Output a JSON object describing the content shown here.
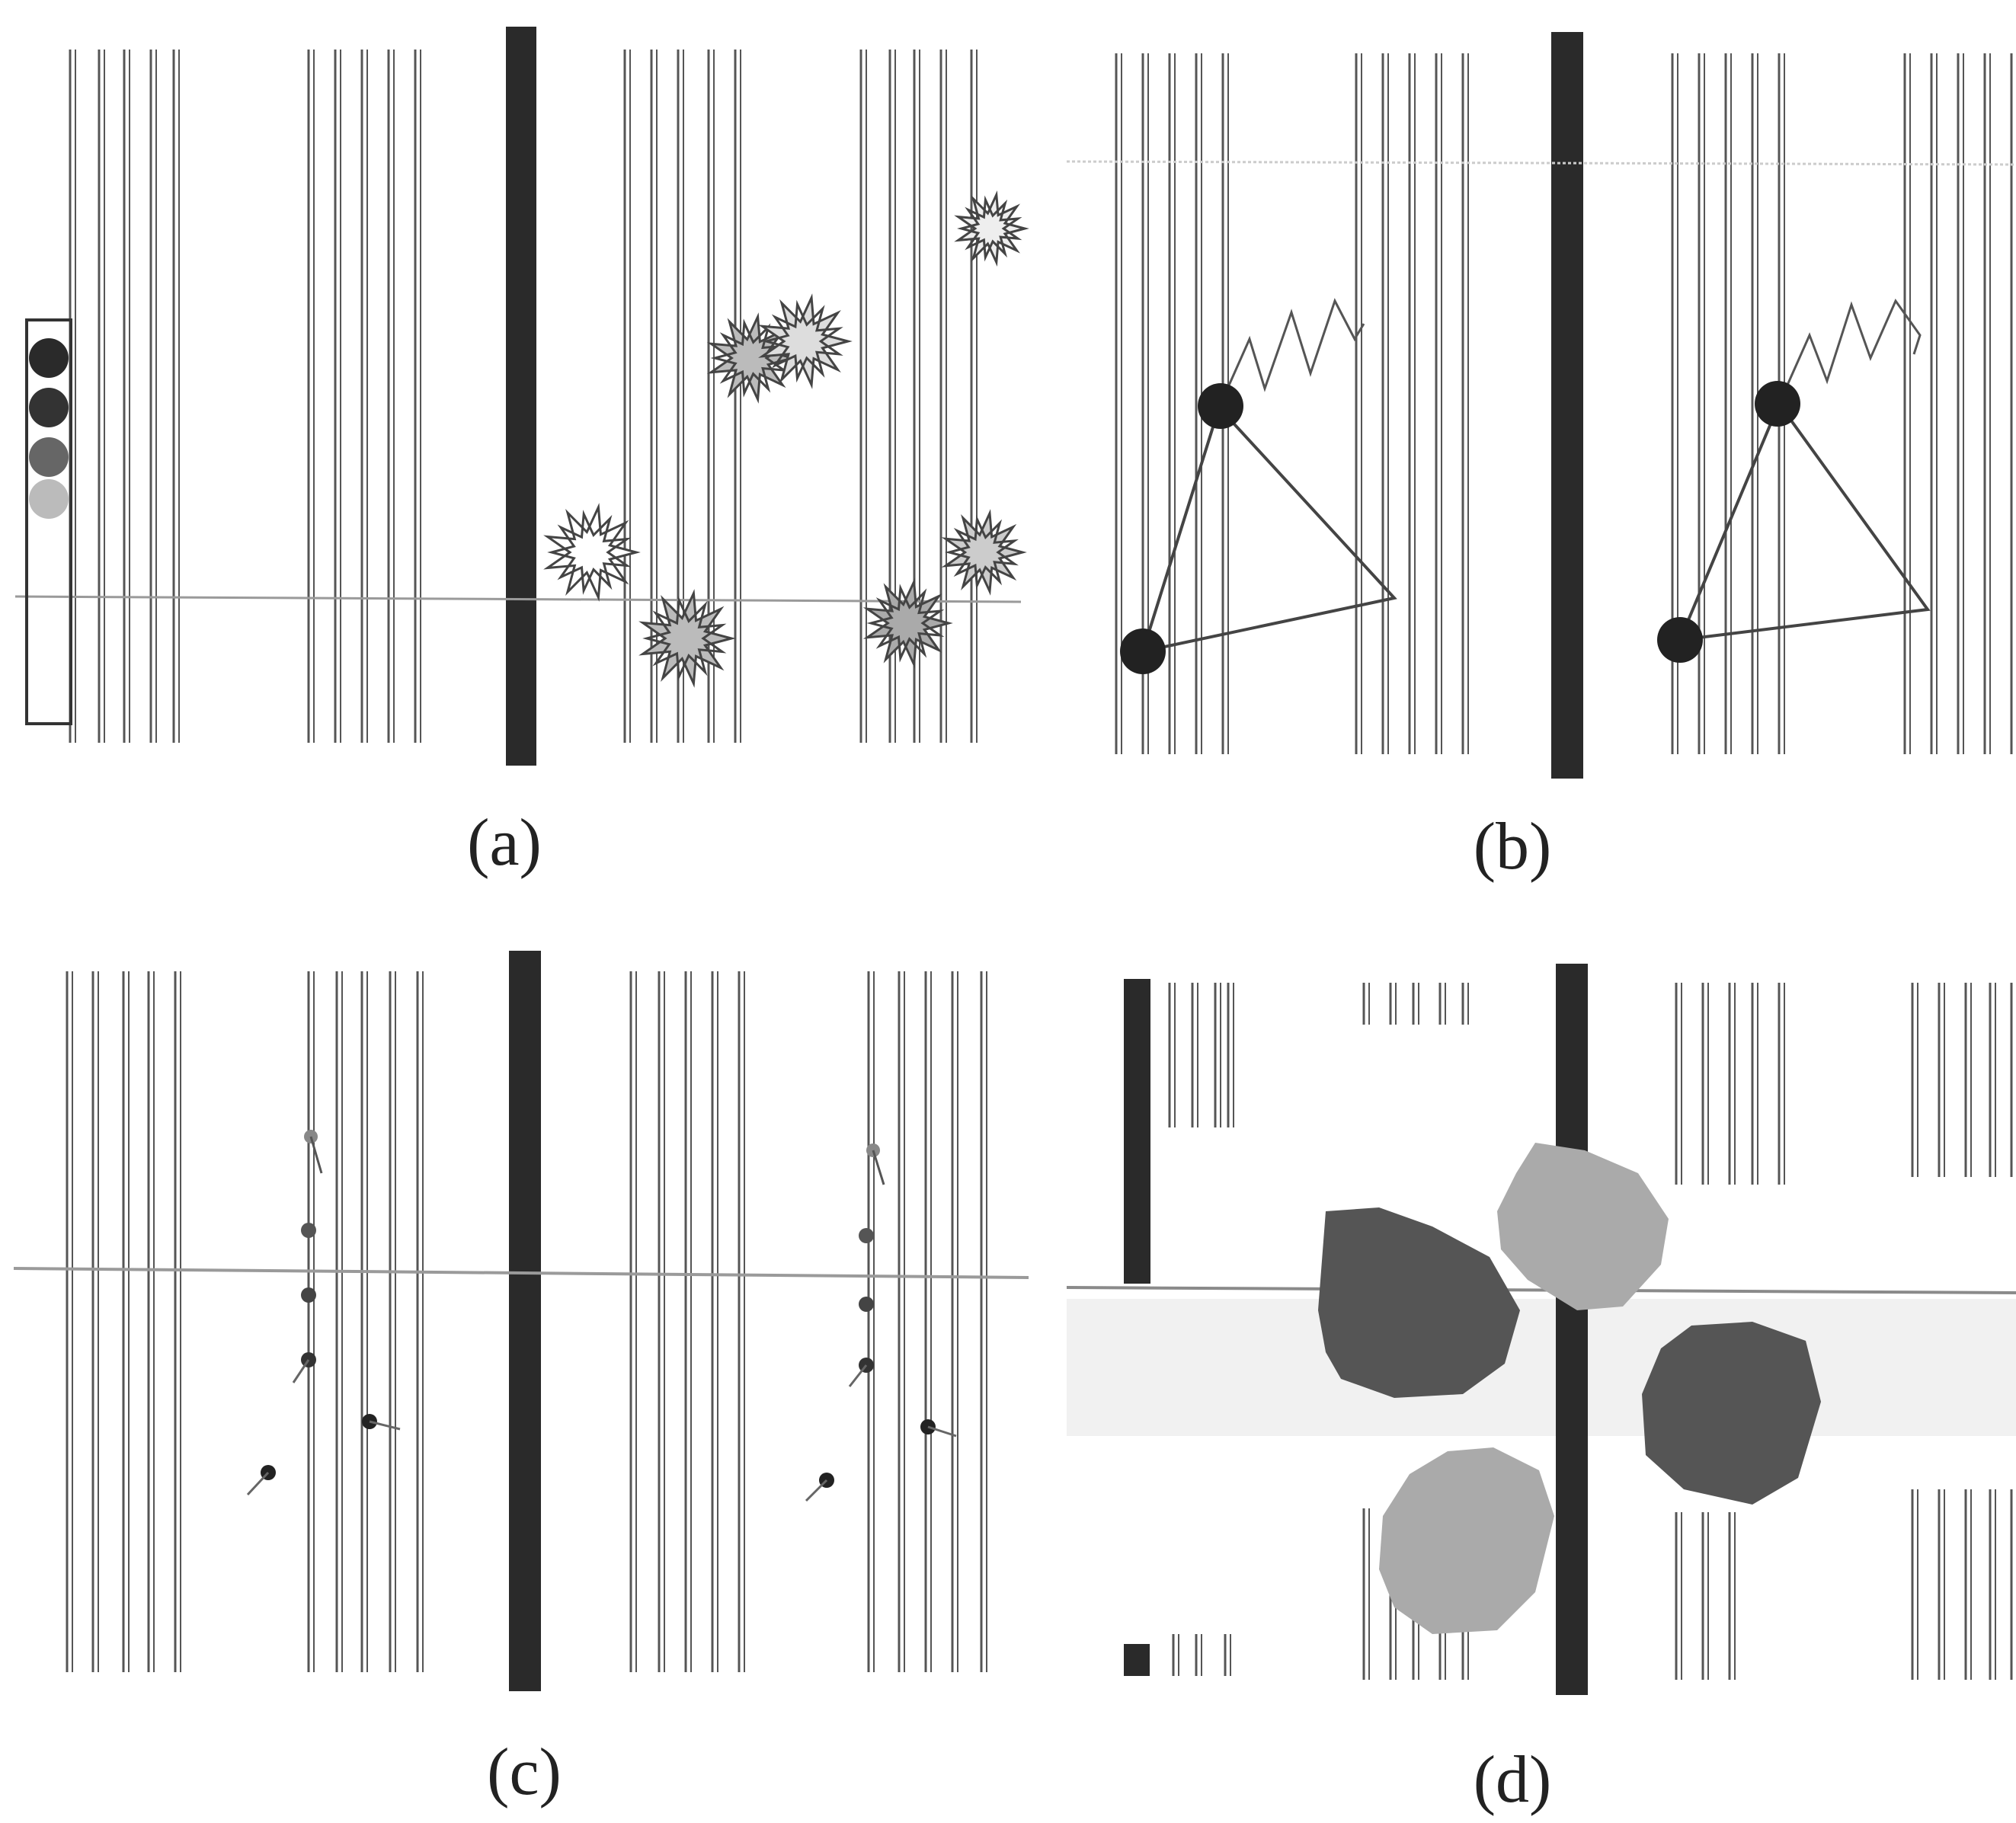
{
  "figure": {
    "colors": {
      "background": "#ffffff",
      "line": "#555555",
      "bar": "#2a2a2a",
      "horizon": "#9a9a9a",
      "dark_fill": "#555555",
      "light_fill": "#aaaaaa"
    },
    "panels": [
      {
        "id": "a",
        "caption": "(a)",
        "marker_icons": [
          "starburst-icon"
        ]
      },
      {
        "id": "b",
        "caption": "(b)",
        "marker_icons": [
          "dot-icon",
          "triangle-path-icon",
          "zigzag-icon"
        ]
      },
      {
        "id": "c",
        "caption": "(c)",
        "marker_icons": [
          "pin-dot-icon"
        ]
      },
      {
        "id": "d",
        "caption": "(d)",
        "marker_icons": [
          "octagon-blob-icon"
        ]
      }
    ]
  }
}
